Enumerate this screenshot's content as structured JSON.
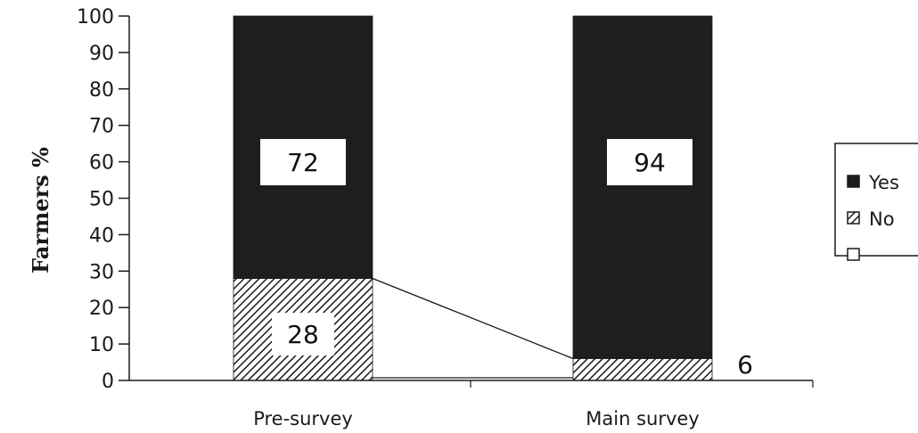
{
  "chart_data": {
    "type": "bar",
    "stacked": true,
    "ylabel": "Farmers %",
    "xlabel": "",
    "ylim": [
      0,
      100
    ],
    "yticks": [
      0,
      10,
      20,
      30,
      40,
      50,
      60,
      70,
      80,
      90,
      100
    ],
    "categories": [
      "Pre-survey",
      "Main survey"
    ],
    "series": [
      {
        "name": "No",
        "values": [
          28,
          6
        ],
        "pattern": "hatched"
      },
      {
        "name": "Yes",
        "values": [
          72,
          94
        ],
        "pattern": "solid",
        "color": "#1e1e1e"
      }
    ],
    "data_labels": {
      "Yes": [
        "72",
        "94"
      ],
      "No": [
        "28",
        "6"
      ]
    },
    "legend": {
      "placement": "right",
      "entries": [
        {
          "label": "Yes",
          "swatch": "solid"
        },
        {
          "label": "No",
          "swatch": "hatched"
        },
        {
          "label": "",
          "swatch": "empty"
        }
      ]
    },
    "series_lines": true,
    "grid": false
  }
}
